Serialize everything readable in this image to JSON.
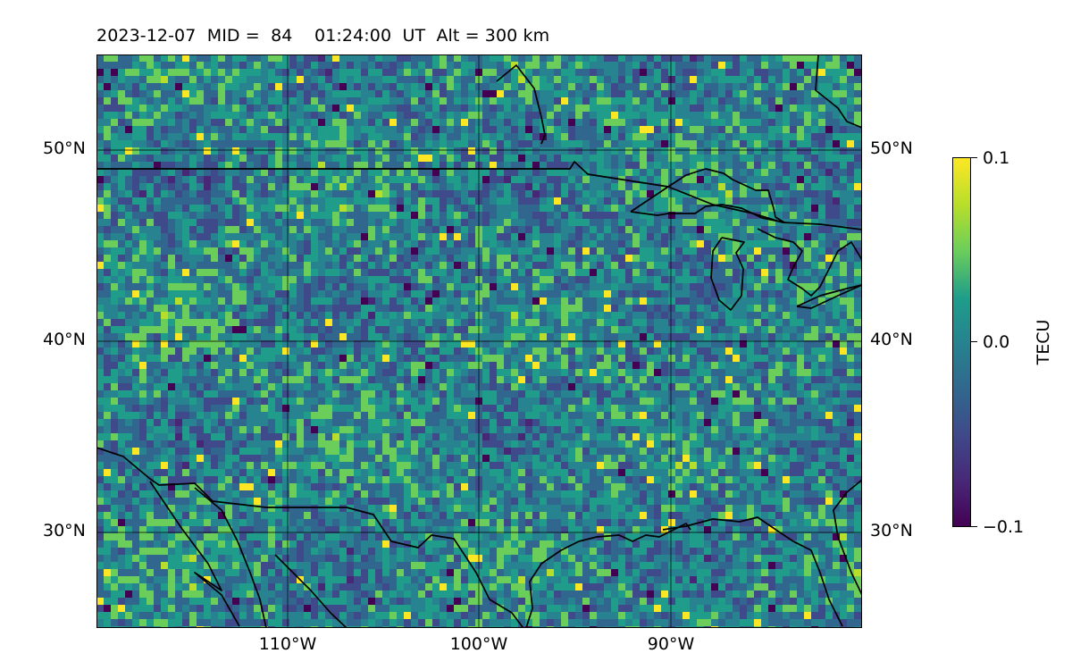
{
  "title": {
    "date": "2023-12-07",
    "mid_label": "MID =",
    "mid_value": "84",
    "time": "01:24:00",
    "time_unit": "UT",
    "alt": "Alt = 300 km"
  },
  "map": {
    "projection": "plate-carree",
    "lon_range": [
      -120,
      -80
    ],
    "lat_range": [
      25,
      55
    ],
    "grid": true,
    "lat_labels": [
      "50°N",
      "40°N",
      "30°N"
    ],
    "lon_labels": [
      "110°W",
      "100°W",
      "90°W"
    ],
    "colormap": "viridis",
    "coastline_color": "#000000"
  },
  "colorbar": {
    "label": "TECU",
    "ticks": [
      "0.1",
      "0.0",
      "−0.1"
    ],
    "vmin": -0.1,
    "vmax": 0.1
  }
}
